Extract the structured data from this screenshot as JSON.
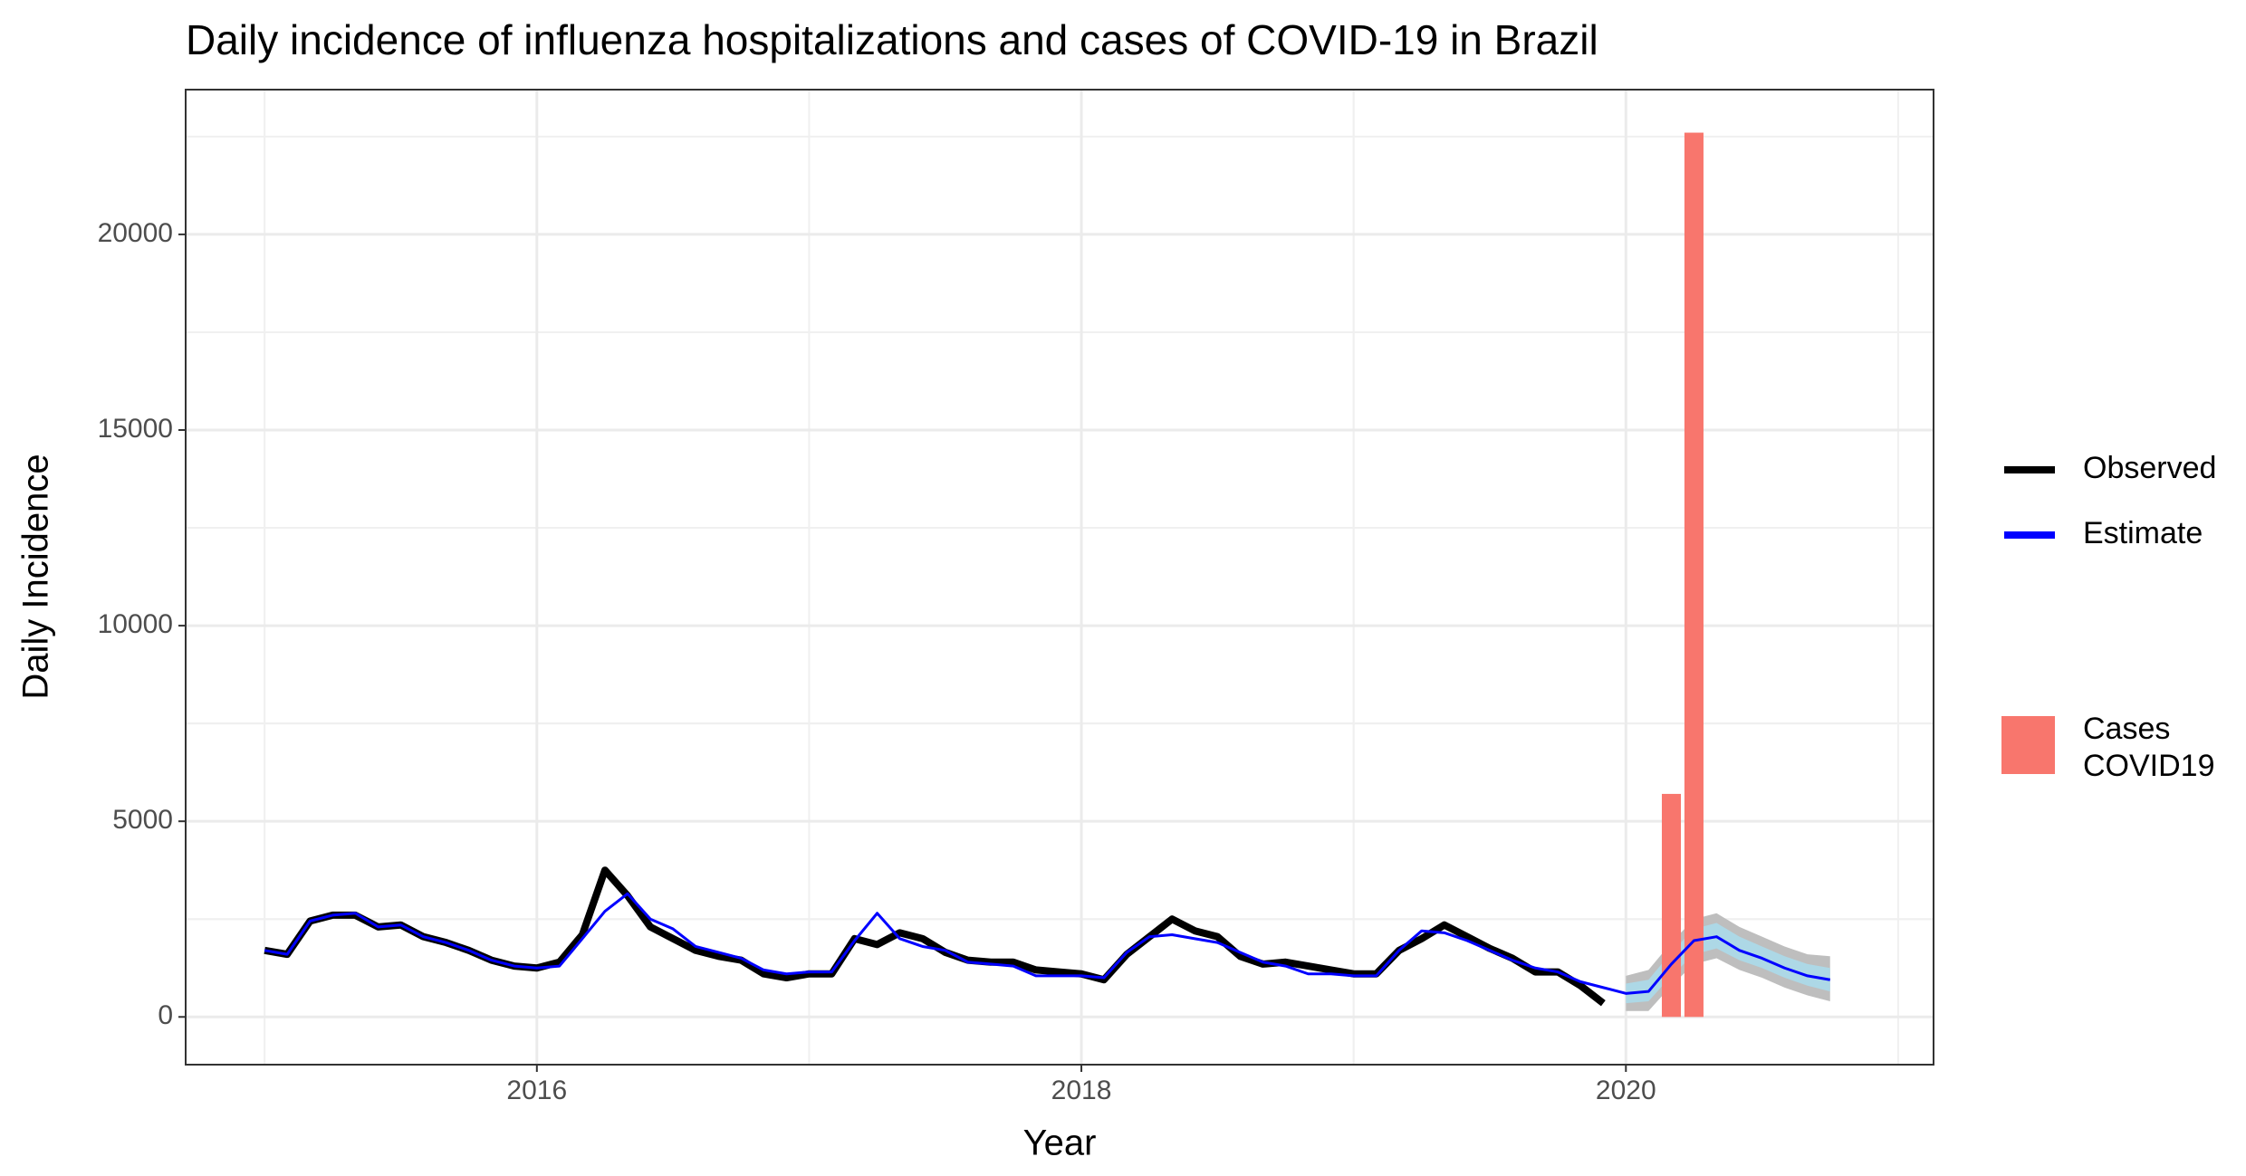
{
  "chart_data": {
    "type": "line",
    "title": "Daily incidence of influenza hospitalizations and cases of COVID-19 in Brazil",
    "x_label": "Year",
    "y_label": "Daily Incidence",
    "xlim": [
      2014.71,
      2021.13
    ],
    "xticks": [
      2016,
      2018,
      2020
    ],
    "ylim": [
      -1220,
      23700
    ],
    "yticks": [
      0,
      5000,
      10000,
      15000,
      20000
    ],
    "grid": true,
    "x": [
      2015,
      2015.083,
      2015.167,
      2015.25,
      2015.333,
      2015.417,
      2015.5,
      2015.583,
      2015.667,
      2015.75,
      2015.833,
      2015.917,
      2016,
      2016.083,
      2016.167,
      2016.25,
      2016.333,
      2016.417,
      2016.5,
      2016.583,
      2016.667,
      2016.75,
      2016.833,
      2016.917,
      2017,
      2017.083,
      2017.167,
      2017.25,
      2017.333,
      2017.417,
      2017.5,
      2017.583,
      2017.667,
      2017.75,
      2017.833,
      2017.917,
      2018,
      2018.083,
      2018.167,
      2018.25,
      2018.333,
      2018.417,
      2018.5,
      2018.583,
      2018.667,
      2018.75,
      2018.833,
      2018.917,
      2019,
      2019.083,
      2019.167,
      2019.25,
      2019.333,
      2019.417,
      2019.5,
      2019.583,
      2019.667,
      2019.75,
      2019.833,
      2019.917,
      2020,
      2020.083,
      2020.167,
      2020.25,
      2020.333,
      2020.417,
      2020.5,
      2020.583,
      2020.667,
      2020.75
    ],
    "series": [
      {
        "name": "Observed",
        "color": "#000000",
        "values": [
          1700,
          1600,
          2450,
          2600,
          2600,
          2300,
          2350,
          2050,
          1900,
          1700,
          1450,
          1300,
          1250,
          1400,
          2100,
          3750,
          3100,
          2300,
          2000,
          1700,
          1550,
          1450,
          1100,
          1000,
          1100,
          1100,
          2000,
          1850,
          2150,
          2000,
          1650,
          1450,
          1400,
          1400,
          1200,
          1150,
          1100,
          950,
          1600,
          2050,
          2500,
          2200,
          2050,
          1550,
          1350,
          1400,
          1300,
          1200,
          1100,
          1100,
          1700,
          2000,
          2350,
          2050,
          1750,
          1500,
          1150,
          1150,
          800,
          350,
          null,
          null,
          null,
          null,
          null,
          null,
          null,
          null,
          null,
          null
        ]
      },
      {
        "name": "Estimate",
        "color": "#0000ff",
        "values": [
          1700,
          1600,
          2450,
          2600,
          2650,
          2300,
          2350,
          2050,
          1900,
          1700,
          1450,
          1300,
          1250,
          1300,
          2000,
          2700,
          3150,
          2500,
          2250,
          1800,
          1650,
          1500,
          1200,
          1100,
          1150,
          1150,
          1950,
          2650,
          2000,
          1800,
          1700,
          1400,
          1350,
          1300,
          1050,
          1050,
          1050,
          1000,
          1650,
          2050,
          2100,
          2000,
          1900,
          1650,
          1400,
          1300,
          1100,
          1100,
          1050,
          1050,
          1700,
          2200,
          2150,
          1950,
          1700,
          1450,
          1250,
          1150,
          900,
          750,
          600,
          650,
          1350,
          1950,
          2050,
          1700,
          1500,
          1250,
          1050,
          950
        ]
      }
    ],
    "bands": [
      {
        "color": "#bebebe",
        "x": [
          2020,
          2020.083,
          2020.167,
          2020.25,
          2020.333,
          2020.417,
          2020.5,
          2020.583,
          2020.667,
          2020.75
        ],
        "lower": [
          150,
          150,
          800,
          1350,
          1500,
          1200,
          1000,
          750,
          550,
          400
        ],
        "upper": [
          1050,
          1200,
          1900,
          2500,
          2650,
          2300,
          2050,
          1800,
          1600,
          1550
        ]
      },
      {
        "color": "#add8e6",
        "x": [
          2020,
          2020.083,
          2020.167,
          2020.25,
          2020.333,
          2020.417,
          2020.5,
          2020.583,
          2020.667,
          2020.75
        ],
        "lower": [
          350,
          400,
          1050,
          1600,
          1750,
          1450,
          1250,
          1000,
          800,
          650
        ],
        "upper": [
          850,
          950,
          1650,
          2250,
          2400,
          2050,
          1800,
          1550,
          1350,
          1250
        ]
      }
    ],
    "bars": {
      "name": "Cases COVID19",
      "color": "#f8766d",
      "x": [
        2020.167,
        2020.25
      ],
      "values": [
        5700,
        22600
      ]
    }
  }
}
